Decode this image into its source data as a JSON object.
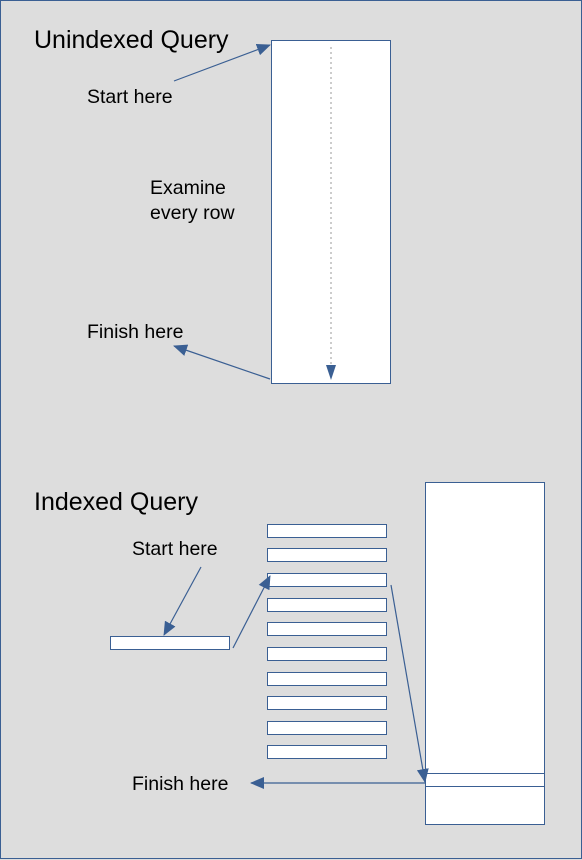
{
  "colors": {
    "background": "#dddddd",
    "stroke": "#3a5f93",
    "box_fill": "#ffffff",
    "text": "#000000",
    "dotted_line": "#999999"
  },
  "unindexed": {
    "title": "Unindexed Query",
    "start_label": "Start here",
    "examine_line1": "Examine",
    "examine_line2": "every row",
    "finish_label": "Finish here"
  },
  "indexed": {
    "title": "Indexed Query",
    "start_label": "Start here",
    "finish_label": "Finish here"
  }
}
